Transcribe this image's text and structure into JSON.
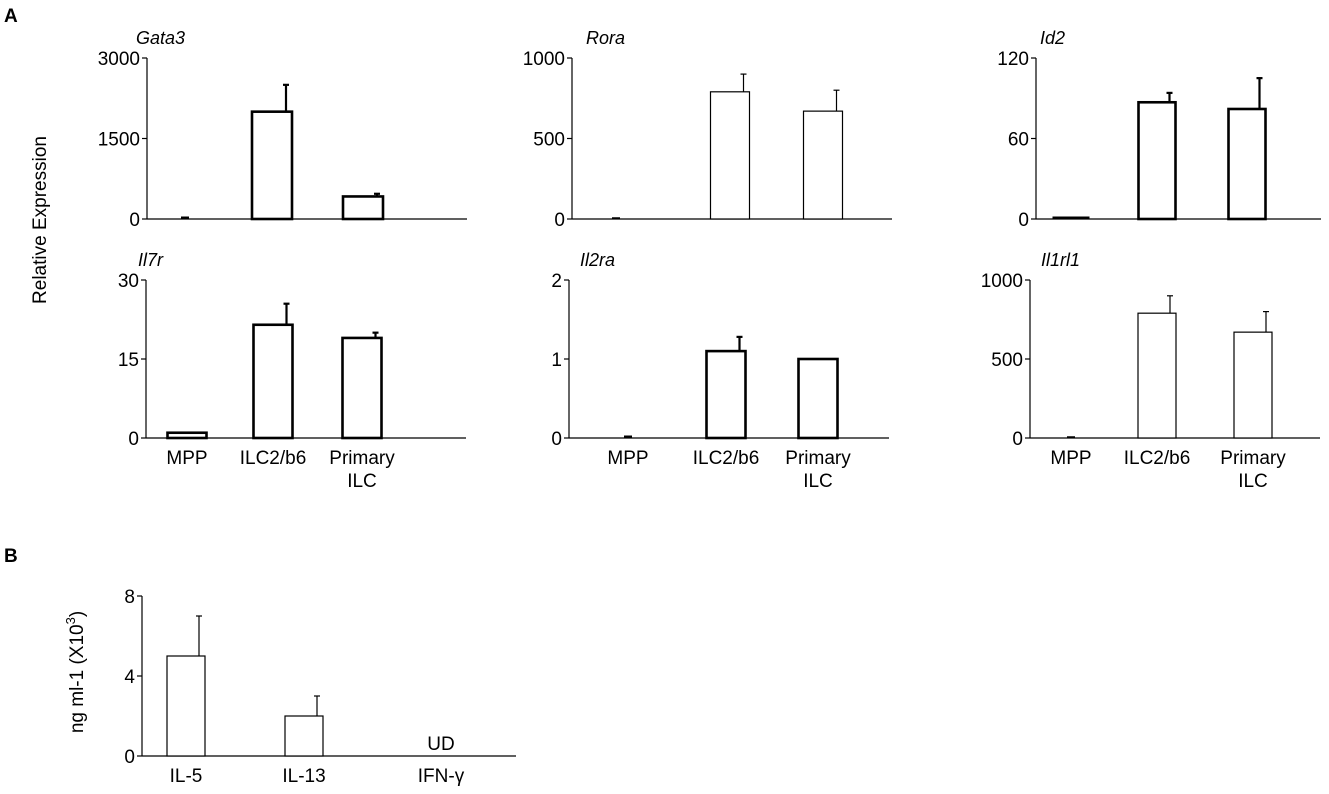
{
  "panels": {
    "a": {
      "letter": "A",
      "ylabel": "Relative Expression"
    },
    "b": {
      "letter": "B",
      "ylabel": "ng ml-1 (X10",
      "ylabel_sup": "3",
      "ylabel_end": ")"
    }
  },
  "chart_data": [
    {
      "type": "bar",
      "panel": "A",
      "title": "Gata3",
      "categories": [
        "MPP",
        "ILC2/b6",
        "Primary ILC"
      ],
      "values": [
        0,
        2000,
        420
      ],
      "errors": [
        0,
        500,
        50
      ],
      "ylim": [
        0,
        3000
      ],
      "yticks": [
        "0",
        "1500",
        "3000"
      ],
      "tick_values": [
        0,
        1500,
        3000
      ],
      "show_xlabels": false,
      "bar_style": "thick"
    },
    {
      "type": "bar",
      "panel": "A",
      "title": "Rora",
      "categories": [
        "MPP",
        "ILC2/b6",
        "Primary ILC"
      ],
      "values": [
        0,
        790,
        670
      ],
      "errors": [
        0,
        110,
        130
      ],
      "ylim": [
        0,
        1000
      ],
      "yticks": [
        "0",
        "500",
        "1000"
      ],
      "tick_values": [
        0,
        500,
        1000
      ],
      "show_xlabels": false,
      "bar_style": "thin"
    },
    {
      "type": "bar",
      "panel": "A",
      "title": "Id2",
      "categories": [
        "MPP",
        "ILC2/b6",
        "Primary ILC"
      ],
      "values": [
        1.5,
        87,
        82
      ],
      "errors": [
        0,
        7,
        23
      ],
      "ylim": [
        0,
        120
      ],
      "yticks": [
        "0",
        "60",
        "120"
      ],
      "tick_values": [
        0,
        60,
        120
      ],
      "show_xlabels": false,
      "bar_style": "thick"
    },
    {
      "type": "bar",
      "panel": "A",
      "title": "Il7r",
      "categories": [
        "MPP",
        "ILC2/b6",
        "Primary ILC"
      ],
      "values": [
        1,
        21.5,
        19
      ],
      "errors": [
        0,
        4,
        1
      ],
      "ylim": [
        0,
        30
      ],
      "yticks": [
        "0",
        "15",
        "30"
      ],
      "tick_values": [
        0,
        15,
        30
      ],
      "show_xlabels": true,
      "bar_style": "thick"
    },
    {
      "type": "bar",
      "panel": "A",
      "title": "Il2ra",
      "categories": [
        "MPP",
        "ILC2/b6",
        "Primary ILC"
      ],
      "values": [
        0,
        1.1,
        1.0
      ],
      "errors": [
        0,
        0.18,
        0
      ],
      "ylim": [
        0,
        2
      ],
      "yticks": [
        "0",
        "1",
        "2"
      ],
      "tick_values": [
        0,
        1,
        2
      ],
      "show_xlabels": true,
      "bar_style": "thick"
    },
    {
      "type": "bar",
      "panel": "A",
      "title": "Il1rl1",
      "categories": [
        "MPP",
        "ILC2/b6",
        "Primary ILC"
      ],
      "values": [
        0,
        790,
        670
      ],
      "errors": [
        0,
        110,
        130
      ],
      "ylim": [
        0,
        1000
      ],
      "yticks": [
        "0",
        "500",
        "1000"
      ],
      "tick_values": [
        0,
        500,
        1000
      ],
      "show_xlabels": true,
      "bar_style": "thin"
    },
    {
      "type": "bar",
      "panel": "B",
      "title": "",
      "categories": [
        "IL-5",
        "IL-13",
        "IFN-γ"
      ],
      "values": [
        5,
        2,
        null
      ],
      "errors": [
        2,
        1,
        0
      ],
      "ylim": [
        0,
        8
      ],
      "yticks": [
        "0",
        "4",
        "8"
      ],
      "tick_values": [
        0,
        4,
        8
      ],
      "annotations": [
        "",
        "",
        "UD"
      ],
      "show_xlabels": true,
      "bar_style": "thin"
    }
  ]
}
